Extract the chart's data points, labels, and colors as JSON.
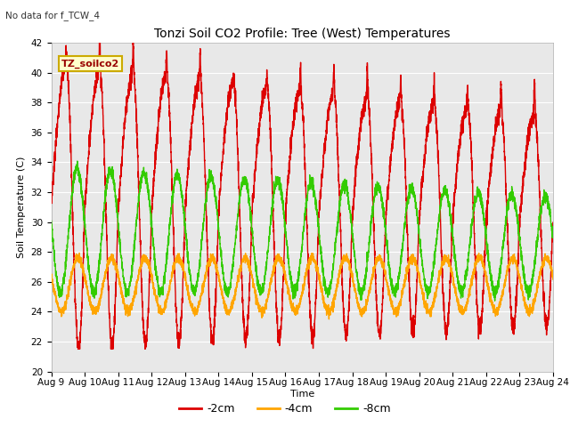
{
  "title": "Tonzi Soil CO2 Profile: Tree (West) Temperatures",
  "subtitle": "No data for f_TCW_4",
  "ylabel": "Soil Temperature (C)",
  "xlabel": "Time",
  "ylim": [
    20,
    42
  ],
  "yticks": [
    20,
    22,
    24,
    26,
    28,
    30,
    32,
    34,
    36,
    38,
    40,
    42
  ],
  "xtick_labels": [
    "Aug 9",
    "Aug 10",
    "Aug 11",
    "Aug 12",
    "Aug 13",
    "Aug 14",
    "Aug 15",
    "Aug 16",
    "Aug 17",
    "Aug 18",
    "Aug 19",
    "Aug 20",
    "Aug 21",
    "Aug 22",
    "Aug 23",
    "Aug 24"
  ],
  "series_labels": [
    "-2cm",
    "-4cm",
    "-8cm"
  ],
  "series_colors": [
    "#dd0000",
    "#ffa500",
    "#33cc00"
  ],
  "legend_label": "TZ_soilco2",
  "legend_box_facecolor": "#ffffcc",
  "legend_box_edgecolor": "#ccaa00",
  "plot_bg_color": "#e8e8e8",
  "figure_bg": "#ffffff",
  "grid_color": "#ffffff",
  "line_width": 1.0,
  "title_fontsize": 10,
  "axis_label_fontsize": 8,
  "tick_fontsize": 7.5
}
